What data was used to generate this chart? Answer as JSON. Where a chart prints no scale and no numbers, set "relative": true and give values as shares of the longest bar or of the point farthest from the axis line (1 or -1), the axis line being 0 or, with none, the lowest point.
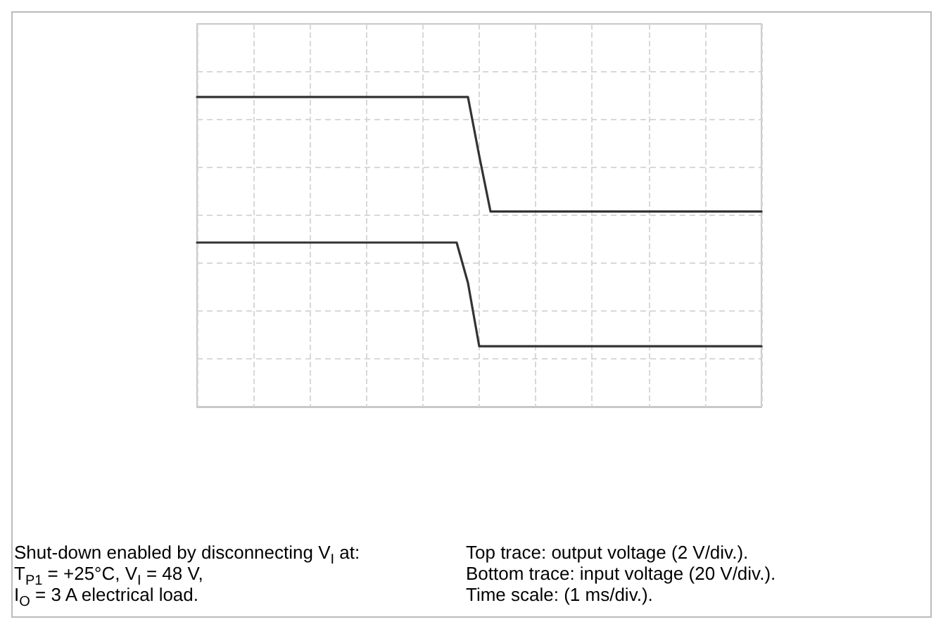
{
  "chart_data": {
    "type": "line",
    "relative": true,
    "grid": true,
    "marker": "none",
    "line_style": "solid",
    "categories": [
      null,
      null,
      null,
      null,
      null,
      null,
      null,
      null,
      null,
      null,
      null,
      null,
      null,
      null,
      null,
      null,
      null,
      null,
      null,
      null,
      null,
      null,
      null,
      null,
      null,
      null,
      null,
      null,
      null,
      null,
      null,
      null,
      null,
      null,
      null,
      null,
      null,
      null,
      null,
      null,
      null,
      null,
      null,
      null,
      null,
      null,
      null,
      null,
      null,
      null,
      null
    ],
    "series": [
      {
        "color": "#333333",
        "values": [
          1,
          1,
          1,
          1,
          1,
          1,
          1,
          1,
          1,
          1,
          1,
          1,
          1,
          1,
          1,
          1,
          1,
          1,
          1,
          1,
          1,
          1,
          1,
          1,
          1,
          0.81,
          0.63,
          0.63,
          0.63,
          0.63,
          0.63,
          0.63,
          0.63,
          0.63,
          0.63,
          0.63,
          0.63,
          0.63,
          0.63,
          0.63,
          0.63,
          0.63,
          0.63,
          0.63,
          0.63,
          0.63,
          0.63,
          0.63,
          0.63,
          0.63,
          0.63
        ]
      },
      {
        "color": "#333333",
        "values": [
          0.53,
          0.53,
          0.53,
          0.53,
          0.53,
          0.53,
          0.53,
          0.53,
          0.53,
          0.53,
          0.53,
          0.53,
          0.53,
          0.53,
          0.53,
          0.53,
          0.53,
          0.53,
          0.53,
          0.53,
          0.53,
          0.53,
          0.53,
          0.53,
          0.4,
          0.195,
          0.195,
          0.195,
          0.195,
          0.195,
          0.195,
          0.195,
          0.195,
          0.195,
          0.195,
          0.195,
          0.195,
          0.195,
          0.195,
          0.195,
          0.195,
          0.195,
          0.195,
          0.195,
          0.195,
          0.195,
          0.195,
          0.195,
          0.195,
          0.195,
          0.195
        ]
      }
    ],
    "annotations": [
      "Shut-down enabled by disconnecting V$_{I}$ at:",
      "T$_{P1}$ = +25°C, V$_{I}$ = 48 V,",
      "I$_{O}$ = 3 A electrical load.",
      "Top trace: output voltage (2 V/div.).",
      "Bottom trace: input voltage (20 V/div.).",
      "Time scale: (1 ms/div.)."
    ]
  }
}
